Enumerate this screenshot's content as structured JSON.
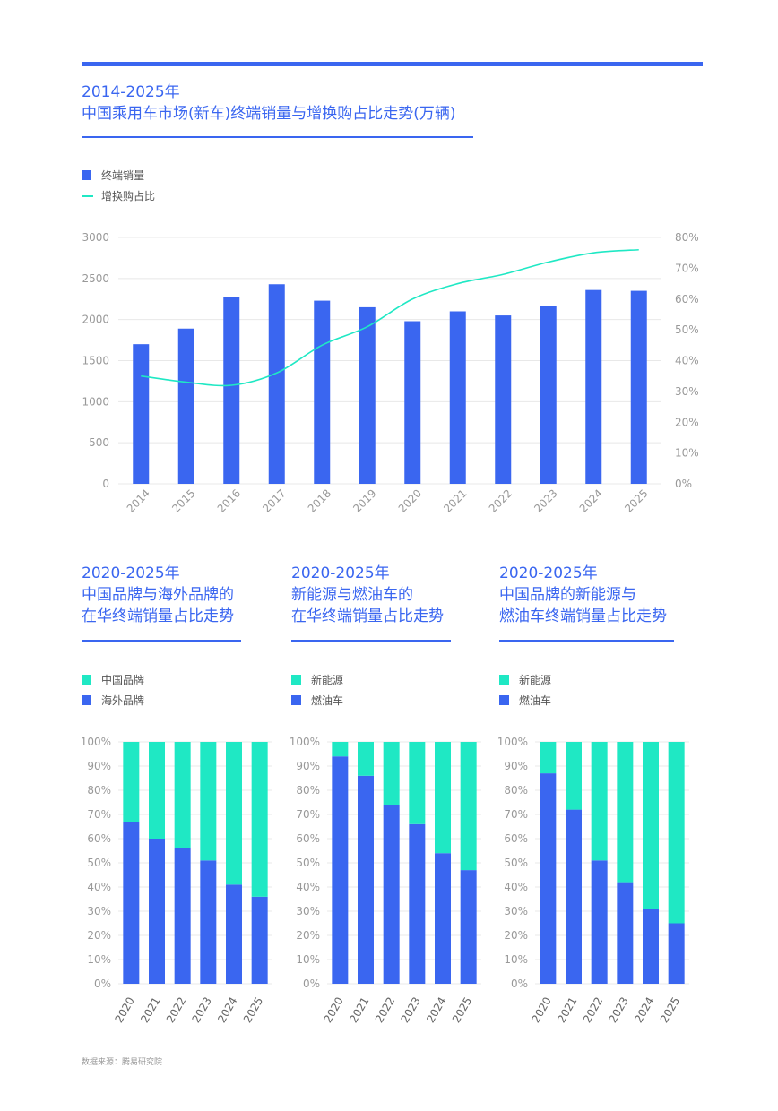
{
  "colors": {
    "blue": "#3a66f0",
    "teal": "#1fe8c4",
    "axis": "#999999",
    "grid": "#e8e8e8"
  },
  "main": {
    "title_line1": "2014-2025年",
    "title_line2": "中国乘用车市场(新车)终端销量与增换购占比走势(万辆)",
    "legend_bar": "终端销量",
    "legend_line": "增换购占比"
  },
  "small_titles": [
    {
      "line1": "2020-2025年",
      "line2": "中国品牌与海外品牌的",
      "line3": "在华终端销量占比走势",
      "legend_top": "中国品牌",
      "legend_bottom": "海外品牌"
    },
    {
      "line1": "2020-2025年",
      "line2": "新能源与燃油车的",
      "line3": "在华终端销量占比走势",
      "legend_top": "新能源",
      "legend_bottom": "燃油车"
    },
    {
      "line1": "2020-2025年",
      "line2": "中国品牌的新能源与",
      "line3": "燃油车终端销量占比走势",
      "legend_top": "新能源",
      "legend_bottom": "燃油车"
    }
  ],
  "footer": {
    "source": "数据来源：腾易研究院"
  },
  "chart_data": [
    {
      "type": "bar",
      "title": "2014-2025年 中国乘用车市场(新车)终端销量与增换购占比走势(万辆)",
      "categories": [
        "2014",
        "2015",
        "2016",
        "2017",
        "2018",
        "2019",
        "2020",
        "2021",
        "2022",
        "2023",
        "2024",
        "2025"
      ],
      "series": [
        {
          "name": "终端销量",
          "type": "bar",
          "axis": "left",
          "values": [
            1700,
            1890,
            2280,
            2430,
            2230,
            2150,
            1980,
            2100,
            2050,
            2160,
            2360,
            2350
          ]
        },
        {
          "name": "增换购占比",
          "type": "line",
          "axis": "right",
          "values": [
            35,
            33,
            32,
            36,
            45,
            51,
            60,
            65,
            68,
            72,
            75,
            76
          ]
        }
      ],
      "ylim": [
        0,
        3000
      ],
      "yticks": [
        "0",
        "500",
        "1000",
        "1500",
        "2000",
        "2500",
        "3000"
      ],
      "y2lim": [
        0,
        80
      ],
      "y2ticks": [
        "0%",
        "10%",
        "20%",
        "30%",
        "40%",
        "50%",
        "60%",
        "70%",
        "80%"
      ]
    },
    {
      "type": "bar",
      "stacked": true,
      "title": "中国品牌与海外品牌的在华终端销量占比走势",
      "categories": [
        "2020",
        "2021",
        "2022",
        "2023",
        "2024",
        "2025"
      ],
      "series": [
        {
          "name": "海外品牌",
          "values": [
            67,
            60,
            56,
            51,
            41,
            36
          ]
        },
        {
          "name": "中国品牌",
          "values": [
            33,
            40,
            44,
            49,
            59,
            64
          ]
        }
      ],
      "ylim": [
        0,
        100
      ],
      "yticks": [
        "0%",
        "10%",
        "20%",
        "30%",
        "40%",
        "50%",
        "60%",
        "70%",
        "80%",
        "90%",
        "100%"
      ]
    },
    {
      "type": "bar",
      "stacked": true,
      "title": "新能源与燃油车的在华终端销量占比走势",
      "categories": [
        "2020",
        "2021",
        "2022",
        "2023",
        "2024",
        "2025"
      ],
      "series": [
        {
          "name": "燃油车",
          "values": [
            94,
            86,
            74,
            66,
            54,
            47
          ]
        },
        {
          "name": "新能源",
          "values": [
            6,
            14,
            26,
            34,
            46,
            53
          ]
        }
      ],
      "ylim": [
        0,
        100
      ],
      "yticks": [
        "0%",
        "10%",
        "20%",
        "30%",
        "40%",
        "50%",
        "60%",
        "70%",
        "80%",
        "90%",
        "100%"
      ]
    },
    {
      "type": "bar",
      "stacked": true,
      "title": "中国品牌的新能源与燃油车终端销量占比走势",
      "categories": [
        "2020",
        "2021",
        "2022",
        "2023",
        "2024",
        "2025"
      ],
      "series": [
        {
          "name": "燃油车",
          "values": [
            87,
            72,
            51,
            42,
            31,
            25
          ]
        },
        {
          "name": "新能源",
          "values": [
            13,
            28,
            49,
            58,
            69,
            75
          ]
        }
      ],
      "ylim": [
        0,
        100
      ],
      "yticks": [
        "0%",
        "10%",
        "20%",
        "30%",
        "40%",
        "50%",
        "60%",
        "70%",
        "80%",
        "90%",
        "100%"
      ]
    }
  ]
}
